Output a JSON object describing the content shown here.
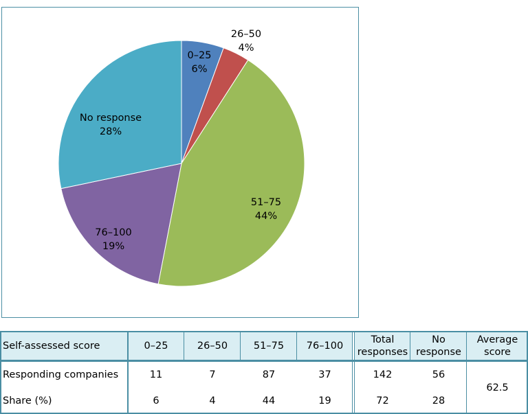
{
  "chart_data": {
    "type": "pie",
    "slices": [
      {
        "label": "0–25",
        "pct_label": "6%",
        "value": 11,
        "color": "#4f81bd"
      },
      {
        "label": "26–50",
        "pct_label": "4%",
        "value": 7,
        "color": "#c0504d"
      },
      {
        "label": "51–75",
        "pct_label": "44%",
        "value": 87,
        "color": "#9bbb59"
      },
      {
        "label": "76–100",
        "pct_label": "19%",
        "value": 37,
        "color": "#8064a2"
      },
      {
        "label": "No response",
        "pct_label": "28%",
        "value": 56,
        "color": "#4bacc6"
      }
    ],
    "start_angle_deg": 0,
    "direction": "clockwise",
    "legend": "none"
  },
  "table": {
    "header_first": "Self-assessed score",
    "score_columns": [
      "0–25",
      "26–50",
      "51–75",
      "76–100"
    ],
    "total_header": [
      "Total",
      "responses"
    ],
    "noresp_header": [
      "No",
      "response"
    ],
    "avg_header": [
      "Average",
      "score"
    ],
    "rows": [
      {
        "label": "Responding companies",
        "values": [
          "11",
          "7",
          "87",
          "37"
        ],
        "total": "142",
        "noresp": "56"
      },
      {
        "label": "Share (%)",
        "values": [
          "6",
          "4",
          "44",
          "19"
        ],
        "total": "72",
        "noresp": "28"
      }
    ],
    "average": "62.5"
  }
}
